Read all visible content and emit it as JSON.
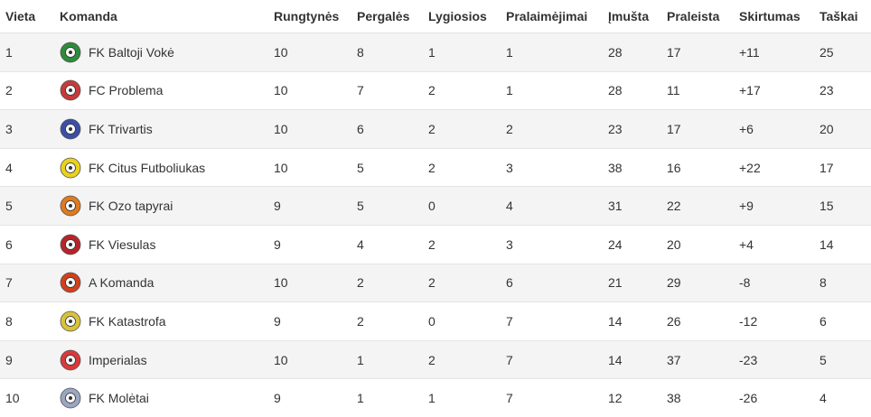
{
  "table": {
    "columns": [
      "Vieta",
      "Komanda",
      "Rungtynės",
      "Pergalės",
      "Lygiosios",
      "Pralaimėjimai",
      "Įmušta",
      "Praleista",
      "Skirtumas",
      "Taškai"
    ],
    "rows": [
      {
        "pos": "1",
        "team": "FK Baltoji Vokė",
        "logo": "baltoji-voke-logo",
        "played": "10",
        "won": "8",
        "drawn": "1",
        "lost": "1",
        "scored": "28",
        "conceded": "17",
        "diff": "+11",
        "points": "25",
        "color": "#2e8b3a"
      },
      {
        "pos": "2",
        "team": "FC Problema",
        "logo": "problema-logo",
        "played": "10",
        "won": "7",
        "drawn": "2",
        "lost": "1",
        "scored": "28",
        "conceded": "11",
        "diff": "+17",
        "points": "23",
        "color": "#c83a3a"
      },
      {
        "pos": "3",
        "team": "FK Trivartis",
        "logo": "trivartis-logo",
        "played": "10",
        "won": "6",
        "drawn": "2",
        "lost": "2",
        "scored": "23",
        "conceded": "17",
        "diff": "+6",
        "points": "20",
        "color": "#3a4fa8"
      },
      {
        "pos": "4",
        "team": "FK Citus Futboliukas",
        "logo": "citus-futboliukas-logo",
        "played": "10",
        "won": "5",
        "drawn": "2",
        "lost": "3",
        "scored": "38",
        "conceded": "16",
        "diff": "+22",
        "points": "17",
        "color": "#e8d21c"
      },
      {
        "pos": "5",
        "team": "FK Ozo tapyrai",
        "logo": "ozo-tapyrai-logo",
        "played": "9",
        "won": "5",
        "drawn": "0",
        "lost": "4",
        "scored": "31",
        "conceded": "22",
        "diff": "+9",
        "points": "15",
        "color": "#e07a1f"
      },
      {
        "pos": "6",
        "team": "FK Viesulas",
        "logo": "viesulas-logo",
        "played": "9",
        "won": "4",
        "drawn": "2",
        "lost": "3",
        "scored": "24",
        "conceded": "20",
        "diff": "+4",
        "points": "14",
        "color": "#b8232a"
      },
      {
        "pos": "7",
        "team": "A Komanda",
        "logo": "a-komanda-logo",
        "played": "10",
        "won": "2",
        "drawn": "2",
        "lost": "6",
        "scored": "21",
        "conceded": "29",
        "diff": "-8",
        "points": "8",
        "color": "#d0401c"
      },
      {
        "pos": "8",
        "team": "FK Katastrofa",
        "logo": "katastrofa-logo",
        "played": "9",
        "won": "2",
        "drawn": "0",
        "lost": "7",
        "scored": "14",
        "conceded": "26",
        "diff": "-12",
        "points": "6",
        "color": "#d8c23a"
      },
      {
        "pos": "9",
        "team": "Imperialas",
        "logo": "imperialas-logo",
        "played": "10",
        "won": "1",
        "drawn": "2",
        "lost": "7",
        "scored": "14",
        "conceded": "37",
        "diff": "-23",
        "points": "5",
        "color": "#d83a3a"
      },
      {
        "pos": "10",
        "team": "FK Molėtai",
        "logo": "moletai-logo",
        "played": "9",
        "won": "1",
        "drawn": "1",
        "lost": "7",
        "scored": "12",
        "conceded": "38",
        "diff": "-26",
        "points": "4",
        "color": "#9aa6c2"
      }
    ]
  }
}
